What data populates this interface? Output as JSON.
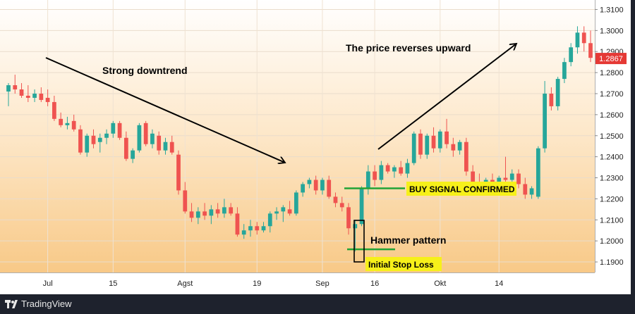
{
  "chart_data": {
    "type": "candlestick",
    "price_axis": {
      "ticks": [
        "1.3100",
        "1.3000",
        "1.2900",
        "1.2800",
        "1.2700",
        "1.2600",
        "1.2500",
        "1.2400",
        "1.2300",
        "1.2200",
        "1.2100",
        "1.2000",
        "1.1900"
      ],
      "range": [
        1.185,
        1.3145
      ],
      "current_price": "1.2867"
    },
    "time_axis": {
      "ticks": [
        "Jul",
        "15",
        "Agst",
        "19",
        "Sep",
        "16",
        "Okt",
        "14"
      ]
    },
    "annotations": {
      "downtrend": "Strong downtrend",
      "reversal": "The price reverses upward",
      "buy_signal": "BUY SIGNAL CONFIRMED",
      "hammer": "Hammer pattern",
      "stop_loss": "Initial Stop Loss"
    },
    "levels": {
      "buy": 1.225,
      "stop": 1.196
    },
    "candles": [
      [
        1.271,
        1.275,
        1.264,
        1.274
      ],
      [
        1.274,
        1.279,
        1.27,
        1.272
      ],
      [
        1.272,
        1.275,
        1.268,
        1.269
      ],
      [
        1.269,
        1.274,
        1.266,
        1.268
      ],
      [
        1.268,
        1.272,
        1.266,
        1.27
      ],
      [
        1.27,
        1.273,
        1.266,
        1.267
      ],
      [
        1.268,
        1.272,
        1.264,
        1.266
      ],
      [
        1.266,
        1.269,
        1.257,
        1.258
      ],
      [
        1.258,
        1.261,
        1.254,
        1.255
      ],
      [
        1.255,
        1.259,
        1.253,
        1.256
      ],
      [
        1.257,
        1.26,
        1.252,
        1.253
      ],
      [
        1.253,
        1.255,
        1.241,
        1.242
      ],
      [
        1.242,
        1.251,
        1.24,
        1.25
      ],
      [
        1.25,
        1.253,
        1.244,
        1.246
      ],
      [
        1.247,
        1.251,
        1.242,
        1.249
      ],
      [
        1.249,
        1.253,
        1.246,
        1.251
      ],
      [
        1.251,
        1.257,
        1.249,
        1.256
      ],
      [
        1.256,
        1.257,
        1.248,
        1.249
      ],
      [
        1.249,
        1.252,
        1.238,
        1.239
      ],
      [
        1.239,
        1.244,
        1.237,
        1.243
      ],
      [
        1.243,
        1.256,
        1.242,
        1.255
      ],
      [
        1.256,
        1.257,
        1.245,
        1.246
      ],
      [
        1.246,
        1.253,
        1.244,
        1.251
      ],
      [
        1.25,
        1.252,
        1.241,
        1.243
      ],
      [
        1.243,
        1.249,
        1.241,
        1.247
      ],
      [
        1.247,
        1.25,
        1.241,
        1.242
      ],
      [
        1.241,
        1.243,
        1.222,
        1.224
      ],
      [
        1.224,
        1.228,
        1.213,
        1.214
      ],
      [
        1.214,
        1.218,
        1.209,
        1.211
      ],
      [
        1.211,
        1.216,
        1.208,
        1.214
      ],
      [
        1.214,
        1.218,
        1.21,
        1.212
      ],
      [
        1.212,
        1.217,
        1.208,
        1.215
      ],
      [
        1.215,
        1.218,
        1.211,
        1.213
      ],
      [
        1.213,
        1.22,
        1.211,
        1.216
      ],
      [
        1.216,
        1.218,
        1.212,
        1.213
      ],
      [
        1.213,
        1.216,
        1.202,
        1.203
      ],
      [
        1.203,
        1.208,
        1.201,
        1.205
      ],
      [
        1.205,
        1.21,
        1.202,
        1.207
      ],
      [
        1.207,
        1.209,
        1.203,
        1.205
      ],
      [
        1.205,
        1.209,
        1.204,
        1.207
      ],
      [
        1.207,
        1.214,
        1.204,
        1.213
      ],
      [
        1.213,
        1.216,
        1.21,
        1.214
      ],
      [
        1.214,
        1.217,
        1.209,
        1.216
      ],
      [
        1.215,
        1.219,
        1.212,
        1.213
      ],
      [
        1.213,
        1.224,
        1.212,
        1.223
      ],
      [
        1.223,
        1.228,
        1.221,
        1.227
      ],
      [
        1.227,
        1.23,
        1.225,
        1.229
      ],
      [
        1.229,
        1.231,
        1.222,
        1.224
      ],
      [
        1.224,
        1.23,
        1.222,
        1.229
      ],
      [
        1.229,
        1.231,
        1.22,
        1.221
      ],
      [
        1.221,
        1.223,
        1.216,
        1.218
      ],
      [
        1.218,
        1.221,
        1.214,
        1.216
      ],
      [
        1.216,
        1.218,
        1.203,
        1.206
      ],
      [
        1.206,
        1.21,
        1.195,
        1.208
      ],
      [
        1.208,
        1.226,
        1.207,
        1.225
      ],
      [
        1.225,
        1.236,
        1.222,
        1.233
      ],
      [
        1.233,
        1.236,
        1.226,
        1.229
      ],
      [
        1.229,
        1.238,
        1.227,
        1.236
      ],
      [
        1.236,
        1.237,
        1.232,
        1.233
      ],
      [
        1.233,
        1.236,
        1.23,
        1.235
      ],
      [
        1.235,
        1.238,
        1.231,
        1.232
      ],
      [
        1.232,
        1.239,
        1.23,
        1.237
      ],
      [
        1.237,
        1.252,
        1.236,
        1.251
      ],
      [
        1.251,
        1.253,
        1.239,
        1.241
      ],
      [
        1.241,
        1.251,
        1.239,
        1.25
      ],
      [
        1.25,
        1.254,
        1.242,
        1.244
      ],
      [
        1.244,
        1.253,
        1.242,
        1.252
      ],
      [
        1.252,
        1.258,
        1.244,
        1.246
      ],
      [
        1.246,
        1.249,
        1.24,
        1.243
      ],
      [
        1.243,
        1.248,
        1.241,
        1.247
      ],
      [
        1.247,
        1.249,
        1.231,
        1.233
      ],
      [
        1.233,
        1.236,
        1.226,
        1.228
      ],
      [
        1.228,
        1.232,
        1.224,
        1.226
      ],
      [
        1.226,
        1.23,
        1.223,
        1.229
      ],
      [
        1.229,
        1.232,
        1.225,
        1.227
      ],
      [
        1.227,
        1.231,
        1.223,
        1.23
      ],
      [
        1.23,
        1.24,
        1.228,
        1.229
      ],
      [
        1.229,
        1.234,
        1.226,
        1.232
      ],
      [
        1.232,
        1.234,
        1.225,
        1.227
      ],
      [
        1.227,
        1.23,
        1.22,
        1.222
      ],
      [
        1.222,
        1.226,
        1.22,
        1.225
      ],
      [
        1.221,
        1.245,
        1.22,
        1.244
      ],
      [
        1.244,
        1.276,
        1.242,
        1.27
      ],
      [
        1.27,
        1.273,
        1.262,
        1.264
      ],
      [
        1.264,
        1.278,
        1.262,
        1.277
      ],
      [
        1.277,
        1.287,
        1.275,
        1.285
      ],
      [
        1.285,
        1.294,
        1.283,
        1.292
      ],
      [
        1.292,
        1.302,
        1.289,
        1.299
      ],
      [
        1.299,
        1.302,
        1.29,
        1.294
      ],
      [
        1.294,
        1.3,
        1.285,
        1.287
      ]
    ]
  },
  "footer": {
    "brand": "TradingView"
  }
}
